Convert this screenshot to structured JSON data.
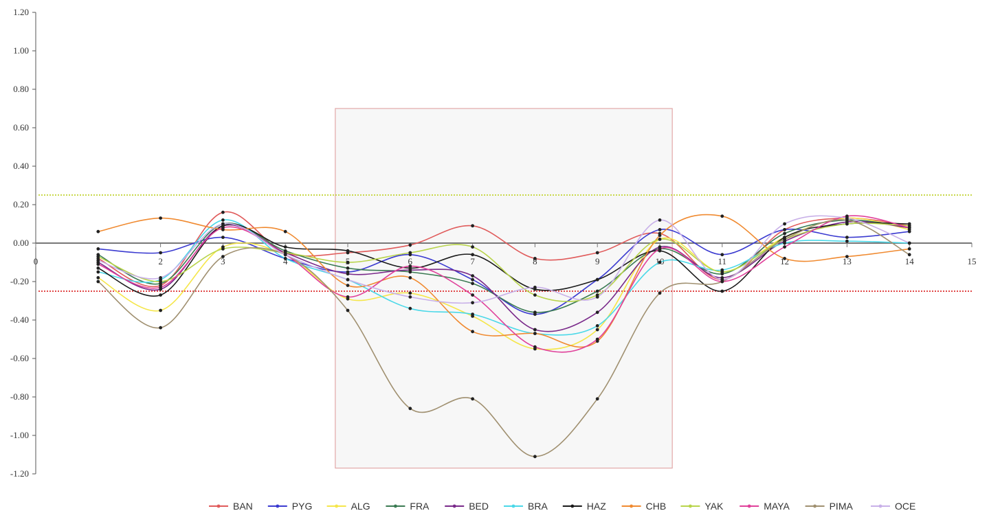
{
  "chart_data": {
    "type": "line",
    "title": "",
    "xlabel": "",
    "ylabel": "",
    "xlim": [
      0,
      15
    ],
    "ylim": [
      -1.2,
      1.2
    ],
    "x_ticks": [
      "0",
      "2",
      "3",
      "4",
      "5",
      "6",
      "7",
      "8",
      "9",
      "10",
      "11",
      "12",
      "13",
      "14",
      "15"
    ],
    "y_ticks": [
      "1.20",
      "1.00",
      "0.80",
      "0.60",
      "0.40",
      "0.20",
      "0.00",
      "-0.20",
      "-0.40",
      "-0.60",
      "-0.80",
      "-1.00",
      "-1.20"
    ],
    "thresholds": [
      {
        "value": 0.25,
        "color": "#c8d84a"
      },
      {
        "value": -0.25,
        "color": "#e04646"
      }
    ],
    "highlight_region": {
      "x": [
        4.8,
        10.2
      ],
      "y": [
        -1.17,
        0.7
      ],
      "border": "#e2a8a8",
      "fill": "#f7f7f7"
    },
    "x": [
      1,
      2,
      3,
      4,
      5,
      6,
      7,
      8,
      9,
      10,
      11,
      12,
      13,
      14
    ],
    "series": [
      {
        "name": "BAN",
        "color": "#e05a5a",
        "values": [
          -0.08,
          -0.22,
          0.16,
          -0.05,
          -0.05,
          -0.01,
          0.09,
          -0.08,
          -0.05,
          0.05,
          -0.19,
          0.07,
          0.13,
          0.09
        ]
      },
      {
        "name": "PYG",
        "color": "#3a3ad0",
        "values": [
          -0.03,
          -0.05,
          0.03,
          -0.08,
          -0.15,
          -0.06,
          -0.19,
          -0.37,
          -0.19,
          0.07,
          -0.06,
          0.07,
          0.03,
          0.06
        ]
      },
      {
        "name": "ALG",
        "color": "#f5e64a",
        "values": [
          -0.18,
          -0.35,
          -0.02,
          -0.06,
          -0.29,
          -0.26,
          -0.38,
          -0.55,
          -0.45,
          0.02,
          -0.15,
          0.03,
          0.13,
          0.07
        ]
      },
      {
        "name": "FRA",
        "color": "#3a7a52",
        "values": [
          -0.06,
          -0.21,
          0.1,
          -0.04,
          -0.13,
          -0.15,
          -0.21,
          -0.36,
          -0.25,
          -0.03,
          -0.16,
          0.05,
          0.12,
          0.08
        ]
      },
      {
        "name": "BED",
        "color": "#7a2a8a",
        "values": [
          -0.1,
          -0.24,
          0.09,
          -0.05,
          -0.16,
          -0.14,
          -0.17,
          -0.45,
          -0.36,
          -0.02,
          -0.18,
          0.01,
          0.11,
          0.08
        ]
      },
      {
        "name": "BRA",
        "color": "#4ad8e8",
        "values": [
          -0.15,
          -0.19,
          0.12,
          -0.08,
          -0.19,
          -0.34,
          -0.37,
          -0.47,
          -0.43,
          -0.1,
          -0.14,
          0.0,
          0.01,
          0.0
        ]
      },
      {
        "name": "HAZ",
        "color": "#1a1a1a",
        "values": [
          -0.13,
          -0.27,
          0.09,
          -0.02,
          -0.04,
          -0.13,
          -0.06,
          -0.24,
          -0.19,
          -0.04,
          -0.25,
          0.03,
          0.1,
          0.1
        ]
      },
      {
        "name": "CHB",
        "color": "#f08a30",
        "values": [
          0.06,
          0.13,
          0.07,
          0.06,
          -0.22,
          -0.18,
          -0.46,
          -0.47,
          -0.51,
          0.04,
          0.14,
          -0.08,
          -0.07,
          -0.03
        ]
      },
      {
        "name": "YAK",
        "color": "#b8d44a",
        "values": [
          -0.07,
          -0.2,
          -0.03,
          -0.05,
          -0.1,
          -0.05,
          -0.02,
          -0.27,
          -0.27,
          0.02,
          -0.15,
          0.02,
          0.1,
          0.09
        ]
      },
      {
        "name": "MAYA",
        "color": "#e0409a",
        "values": [
          -0.11,
          -0.23,
          0.08,
          -0.06,
          -0.28,
          -0.12,
          -0.27,
          -0.54,
          -0.5,
          -0.03,
          -0.2,
          -0.02,
          0.14,
          0.08
        ]
      },
      {
        "name": "PIMA",
        "color": "#a09070",
        "values": [
          -0.2,
          -0.44,
          -0.07,
          -0.06,
          -0.35,
          -0.86,
          -0.81,
          -1.11,
          -0.81,
          -0.26,
          -0.2,
          0.02,
          0.12,
          -0.06
        ]
      },
      {
        "name": "OCE",
        "color": "#c8b0e8",
        "values": [
          -0.09,
          -0.18,
          0.1,
          -0.06,
          -0.19,
          -0.28,
          -0.31,
          -0.23,
          -0.28,
          0.12,
          -0.19,
          0.1,
          0.13,
          0.0
        ]
      }
    ]
  }
}
